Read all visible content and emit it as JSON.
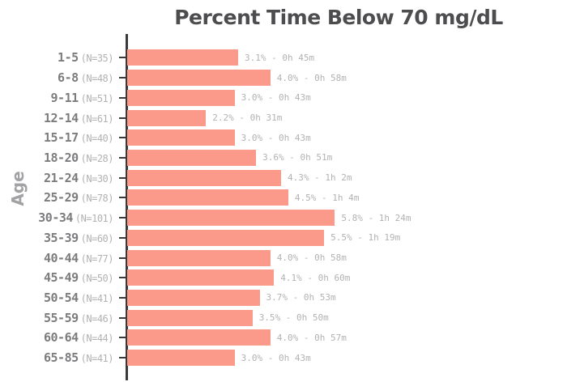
{
  "title": "Percent Time Below 70 mg/dL",
  "y_axis_title": "Age",
  "colors": {
    "bar": "#FB9A8B",
    "axis": "#39393B",
    "title_text": "#4D4D4F",
    "age_label_text": "#7C7C7E",
    "muted_label_text": "#B2B2B4",
    "background": "#FFFFFF"
  },
  "chart_data": {
    "type": "bar",
    "orientation": "horizontal",
    "title": "Percent Time Below 70 mg/dL",
    "ylabel": "Age",
    "xlabel": "",
    "x_axis_visible": false,
    "grid": false,
    "legend": false,
    "value_unit": "percent",
    "categories": [
      "1-5",
      "6-8",
      "9-11",
      "12-14",
      "15-17",
      "18-20",
      "21-24",
      "25-29",
      "30-34",
      "35-39",
      "40-44",
      "45-49",
      "50-54",
      "55-59",
      "60-64",
      "65-85"
    ],
    "sample_size_labels": [
      "(N=35)",
      "(N=48)",
      "(N=51)",
      "(N=61)",
      "(N=40)",
      "(N=28)",
      "(N=30)",
      "(N=78)",
      "(N=101)",
      "(N=60)",
      "(N=77)",
      "(N=50)",
      "(N=41)",
      "(N=46)",
      "(N=44)",
      "(N=41)"
    ],
    "sample_sizes": [
      35,
      48,
      51,
      61,
      40,
      28,
      30,
      78,
      101,
      60,
      77,
      50,
      41,
      46,
      44,
      41
    ],
    "values": [
      3.1,
      4.0,
      3.0,
      2.2,
      3.0,
      3.6,
      4.3,
      4.5,
      5.8,
      5.5,
      4.0,
      4.1,
      3.7,
      3.5,
      4.0,
      3.0
    ],
    "bar_labels": [
      "3.1% - 0h 45m",
      "4.0% - 0h 58m",
      "3.0% - 0h 43m",
      "2.2% - 0h 31m",
      "3.0% - 0h 43m",
      "3.6% - 0h 51m",
      "4.3% - 1h 2m",
      "4.5% - 1h 4m",
      "5.8% - 1h 24m",
      "5.5% - 1h 19m",
      "4.0% - 0h 58m",
      "4.1% - 0h 60m",
      "3.7% - 0h 53m",
      "3.5% - 0h 50m",
      "4.0% - 0h 57m",
      "3.0% - 0h 43m"
    ]
  }
}
